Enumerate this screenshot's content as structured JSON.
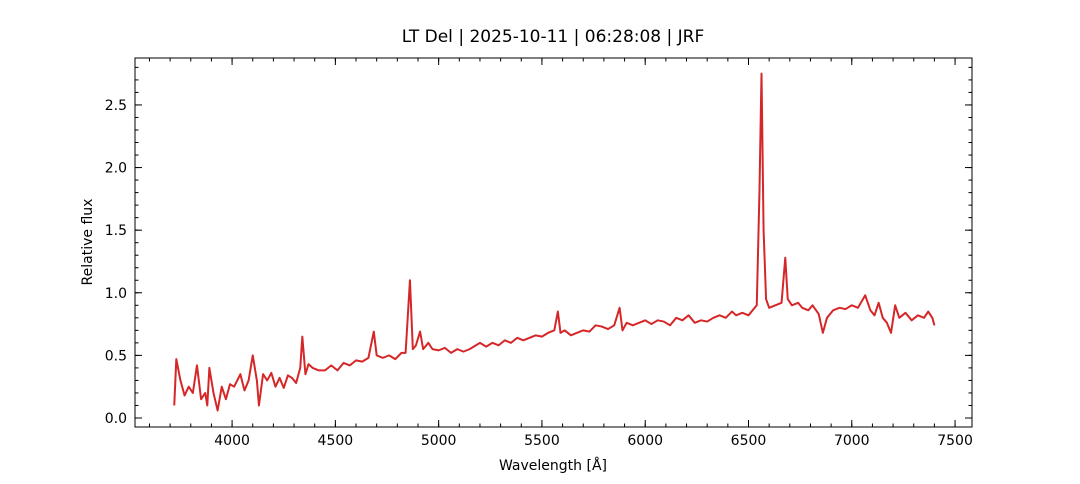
{
  "chart_data": {
    "type": "line",
    "title": "LT Del | 2025-10-11 | 06:28:08 | JRF",
    "x_label": "Wavelength [Å]",
    "y_label": "Relative flux",
    "x": [
      3720,
      3730,
      3750,
      3770,
      3790,
      3810,
      3830,
      3850,
      3870,
      3880,
      3890,
      3910,
      3930,
      3950,
      3970,
      3990,
      4010,
      4040,
      4060,
      4080,
      4100,
      4120,
      4130,
      4150,
      4170,
      4190,
      4210,
      4230,
      4250,
      4270,
      4290,
      4310,
      4330,
      4340,
      4355,
      4370,
      4390,
      4420,
      4450,
      4480,
      4510,
      4540,
      4570,
      4600,
      4630,
      4660,
      4686,
      4700,
      4730,
      4760,
      4790,
      4820,
      4840,
      4861,
      4875,
      4890,
      4910,
      4925,
      4950,
      4970,
      5000,
      5030,
      5060,
      5090,
      5120,
      5150,
      5180,
      5200,
      5230,
      5260,
      5290,
      5320,
      5350,
      5380,
      5410,
      5440,
      5470,
      5500,
      5530,
      5560,
      5577,
      5590,
      5610,
      5640,
      5670,
      5700,
      5730,
      5760,
      5790,
      5820,
      5850,
      5876,
      5890,
      5910,
      5940,
      5970,
      6000,
      6030,
      6060,
      6090,
      6120,
      6150,
      6180,
      6210,
      6240,
      6270,
      6300,
      6330,
      6360,
      6390,
      6420,
      6440,
      6470,
      6500,
      6520,
      6540,
      6553,
      6563,
      6573,
      6585,
      6600,
      6630,
      6660,
      6678,
      6690,
      6710,
      6740,
      6760,
      6790,
      6810,
      6840,
      6860,
      6880,
      6910,
      6940,
      6970,
      7000,
      7030,
      7065,
      7090,
      7110,
      7130,
      7150,
      7170,
      7190,
      7210,
      7230,
      7260,
      7290,
      7320,
      7350,
      7370,
      7390,
      7400
    ],
    "series": [
      {
        "color": "#d62728",
        "values": [
          0.1,
          0.47,
          0.3,
          0.18,
          0.25,
          0.2,
          0.42,
          0.15,
          0.2,
          0.1,
          0.4,
          0.2,
          0.06,
          0.25,
          0.15,
          0.27,
          0.25,
          0.35,
          0.22,
          0.3,
          0.5,
          0.3,
          0.1,
          0.35,
          0.3,
          0.36,
          0.25,
          0.32,
          0.24,
          0.34,
          0.32,
          0.28,
          0.4,
          0.65,
          0.35,
          0.43,
          0.4,
          0.38,
          0.38,
          0.42,
          0.38,
          0.44,
          0.42,
          0.46,
          0.45,
          0.48,
          0.69,
          0.5,
          0.48,
          0.5,
          0.47,
          0.52,
          0.52,
          1.1,
          0.55,
          0.58,
          0.69,
          0.55,
          0.6,
          0.55,
          0.54,
          0.56,
          0.52,
          0.55,
          0.53,
          0.55,
          0.58,
          0.6,
          0.57,
          0.6,
          0.58,
          0.62,
          0.6,
          0.64,
          0.62,
          0.64,
          0.66,
          0.65,
          0.68,
          0.7,
          0.85,
          0.68,
          0.7,
          0.66,
          0.68,
          0.7,
          0.69,
          0.74,
          0.73,
          0.71,
          0.74,
          0.88,
          0.7,
          0.76,
          0.74,
          0.76,
          0.78,
          0.75,
          0.78,
          0.77,
          0.74,
          0.8,
          0.78,
          0.82,
          0.76,
          0.78,
          0.77,
          0.8,
          0.82,
          0.8,
          0.85,
          0.82,
          0.84,
          0.82,
          0.86,
          0.9,
          1.8,
          2.75,
          1.5,
          0.95,
          0.88,
          0.9,
          0.92,
          1.28,
          0.95,
          0.9,
          0.92,
          0.88,
          0.86,
          0.9,
          0.83,
          0.68,
          0.8,
          0.86,
          0.88,
          0.87,
          0.9,
          0.88,
          0.98,
          0.86,
          0.82,
          0.92,
          0.8,
          0.76,
          0.68,
          0.9,
          0.8,
          0.84,
          0.78,
          0.82,
          0.8,
          0.85,
          0.8,
          0.74
        ]
      }
    ],
    "xlim": [
      3530,
      7582
    ],
    "ylim": [
      -0.072,
      2.875
    ],
    "xticks": [
      4000,
      4500,
      5000,
      5500,
      6000,
      6500,
      7000,
      7500
    ],
    "yticks": [
      {
        "value": 0,
        "label": "0.0"
      },
      0.5,
      {
        "value": 1,
        "label": "1.0"
      },
      1.5,
      {
        "value": 2,
        "label": "2.0"
      },
      2.5
    ],
    "minor_ticks": true,
    "ticks_inside": true
  }
}
